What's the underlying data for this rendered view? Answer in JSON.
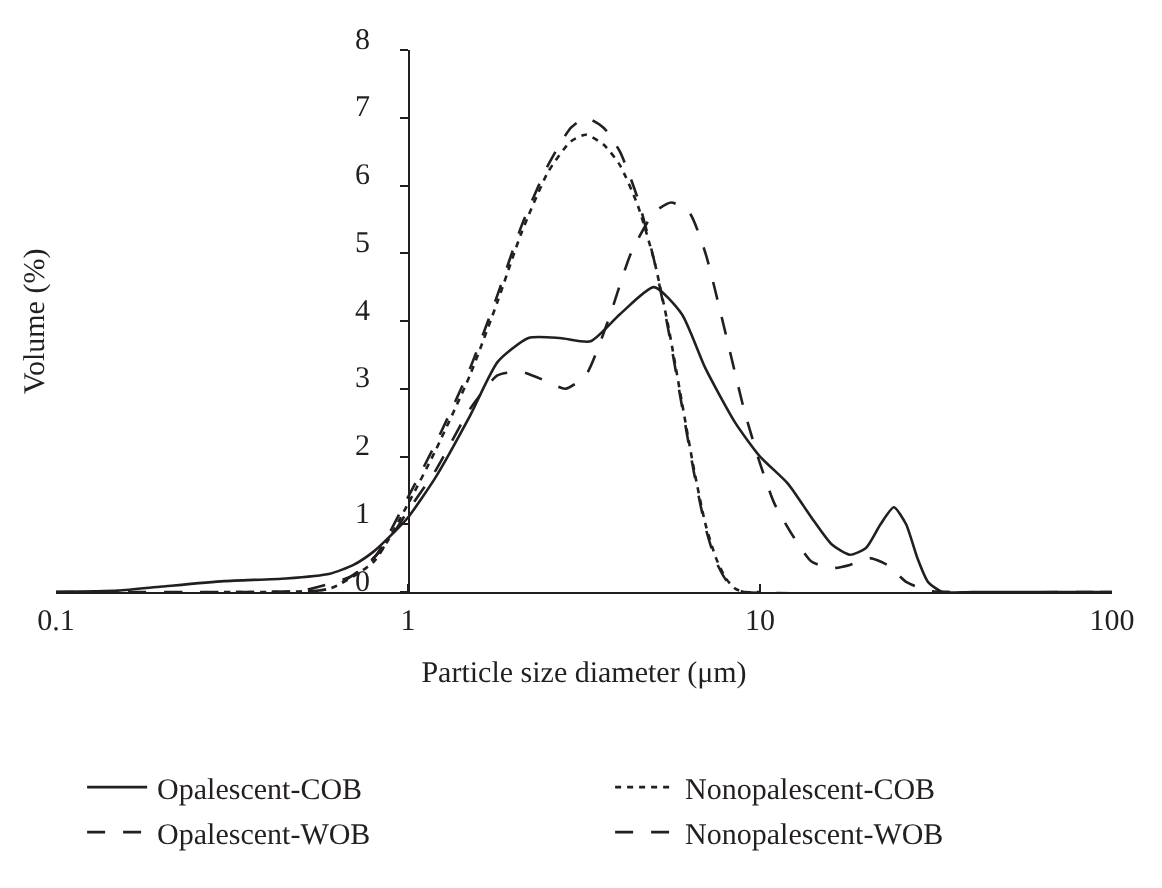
{
  "chart_data": {
    "type": "line",
    "xlabel": "Particle size diameter (μm)",
    "ylabel": "Volume (%)",
    "log": "x",
    "xlim": [
      0.1,
      100
    ],
    "xticks": [
      0.1,
      1,
      10,
      100
    ],
    "ylim": [
      0,
      8
    ],
    "yticks": [
      0,
      1,
      2,
      3,
      4,
      5,
      6,
      7,
      8
    ],
    "legend": "bottom",
    "marker": "none",
    "series": [
      {
        "name": "Opalescent-COB",
        "color": "#231f20",
        "line_style": "solid",
        "x": [
          0.1,
          0.15,
          0.2,
          0.3,
          0.45,
          0.6,
          0.7,
          0.8,
          0.9,
          1,
          1.2,
          1.5,
          1.8,
          2.2,
          2.7,
          3.3,
          4,
          5,
          6,
          7,
          8.5,
          10,
          12,
          14,
          16,
          18,
          20,
          22,
          24,
          26,
          28,
          30,
          33,
          40,
          100
        ],
        "values": [
          0,
          0.02,
          0.08,
          0.16,
          0.2,
          0.27,
          0.4,
          0.6,
          0.85,
          1.1,
          1.7,
          2.6,
          3.4,
          3.75,
          3.75,
          3.7,
          4.1,
          4.5,
          4.1,
          3.3,
          2.5,
          2.0,
          1.6,
          1.1,
          0.7,
          0.55,
          0.65,
          1.0,
          1.25,
          1.0,
          0.5,
          0.15,
          0,
          0,
          0
        ]
      },
      {
        "name": "Nonopalescent-COB",
        "color": "#231f20",
        "line_style": "dotted",
        "x": [
          0.3,
          0.4,
          0.6,
          0.8,
          1,
          1.2,
          1.5,
          1.8,
          2.1,
          2.5,
          2.9,
          3.2,
          3.6,
          4,
          4.5,
          5,
          5.5,
          6,
          6.5,
          7,
          7.5,
          8,
          8.5,
          9,
          10
        ],
        "values": [
          0,
          0,
          0.05,
          0.45,
          1.3,
          2.1,
          3.2,
          4.3,
          5.3,
          6.2,
          6.65,
          6.75,
          6.6,
          6.3,
          5.7,
          4.9,
          3.9,
          2.8,
          1.8,
          1.0,
          0.5,
          0.2,
          0.05,
          0,
          0
        ]
      },
      {
        "name": "Opalescent-WOB",
        "color": "#231f20",
        "line_style": "dashed",
        "x": [
          0.1,
          0.3,
          0.5,
          0.7,
          0.85,
          1,
          1.2,
          1.5,
          1.8,
          2.1,
          2.5,
          2.8,
          3.2,
          3.7,
          4.3,
          5,
          5.6,
          6.3,
          7,
          8,
          9,
          10,
          11,
          12.5,
          14,
          16,
          18,
          20.5,
          23,
          26,
          30,
          35,
          100
        ],
        "values": [
          0,
          0,
          0.02,
          0.25,
          0.65,
          1.2,
          1.8,
          2.7,
          3.2,
          3.25,
          3.1,
          3.0,
          3.2,
          4.0,
          5.0,
          5.6,
          5.75,
          5.6,
          5.0,
          3.8,
          2.7,
          1.9,
          1.3,
          0.8,
          0.45,
          0.35,
          0.4,
          0.5,
          0.4,
          0.15,
          0.02,
          0,
          0
        ]
      },
      {
        "name": "Nonopalescent-WOB",
        "color": "#231f20",
        "line_style": "dashed",
        "x": [
          0.1,
          0.4,
          0.6,
          0.8,
          1,
          1.2,
          1.5,
          1.8,
          2.1,
          2.5,
          2.9,
          3.2,
          3.6,
          4,
          4.5,
          5,
          5.5,
          6,
          6.5,
          7,
          7.5,
          8,
          8.5,
          9,
          100
        ],
        "values": [
          0,
          0,
          0.05,
          0.5,
          1.4,
          2.2,
          3.3,
          4.4,
          5.4,
          6.3,
          6.85,
          7.0,
          6.85,
          6.5,
          5.8,
          4.9,
          3.85,
          2.75,
          1.75,
          0.95,
          0.45,
          0.18,
          0.04,
          0,
          0
        ]
      }
    ]
  }
}
